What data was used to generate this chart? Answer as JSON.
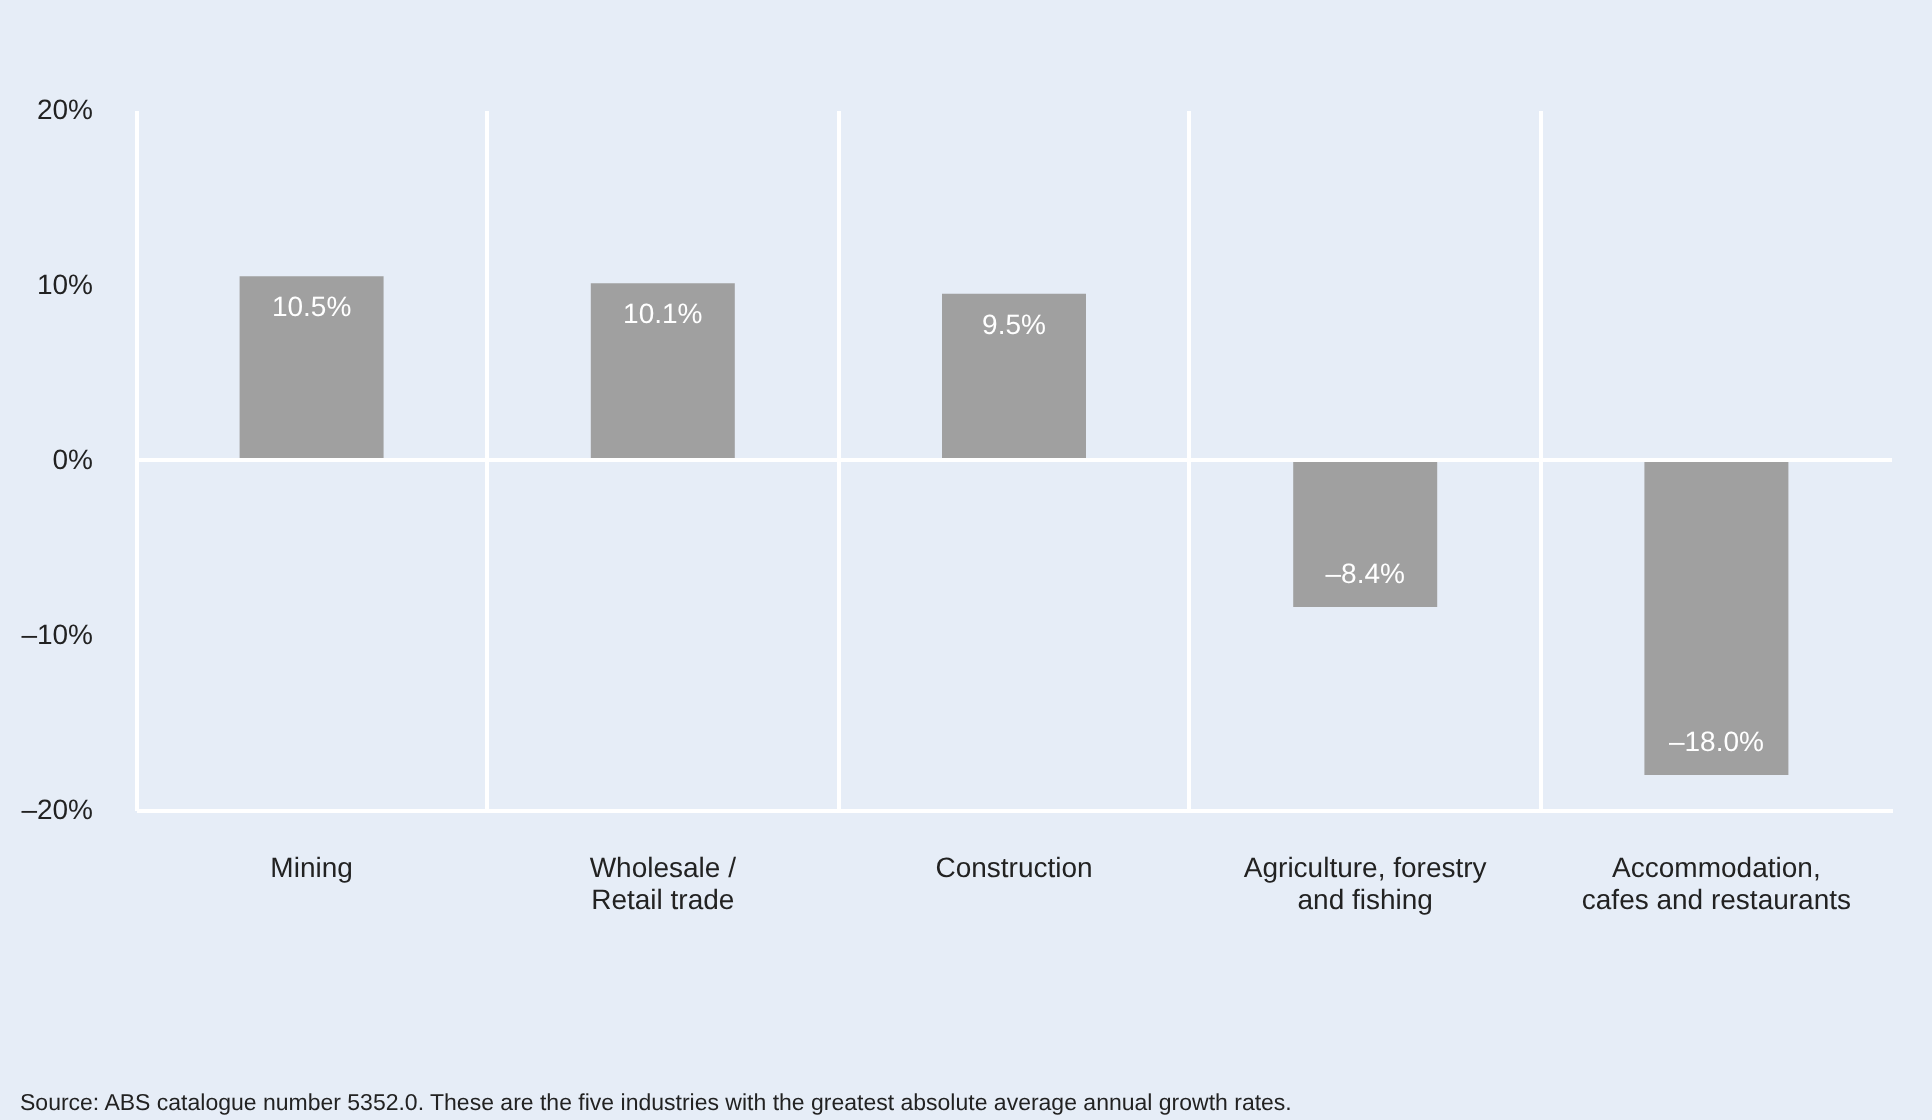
{
  "chart_data": {
    "type": "bar",
    "categories": [
      "Mining",
      "Wholesale /\nRetail trade",
      "Construction",
      "Agriculture, forestry\nand fishing",
      "Accommodation,\ncafes and restaurants"
    ],
    "values": [
      10.5,
      10.1,
      9.5,
      -8.4,
      -18.0
    ],
    "color": "#a0a0a0",
    "value_labels": [
      "10.5%",
      "10.1%",
      "9.5%",
      "–8.4%",
      "–18.0%"
    ],
    "ylim": [
      -20,
      20
    ],
    "yticks": [
      {
        "value": -20,
        "label": "–20%"
      },
      {
        "value": -10,
        "label": "–10%"
      },
      {
        "value": 0,
        "label": "0%"
      },
      {
        "value": 10,
        "label": "10%"
      },
      {
        "value": 20,
        "label": "20%"
      }
    ],
    "grid": "x",
    "ref_lines": [
      {
        "axis": "y",
        "value": 0,
        "color": "#ffffff"
      }
    ],
    "annotations": [
      "Source: ABS catalogue number 5352.0. These are the five industries with the greatest absolute average annual growth rates."
    ]
  }
}
